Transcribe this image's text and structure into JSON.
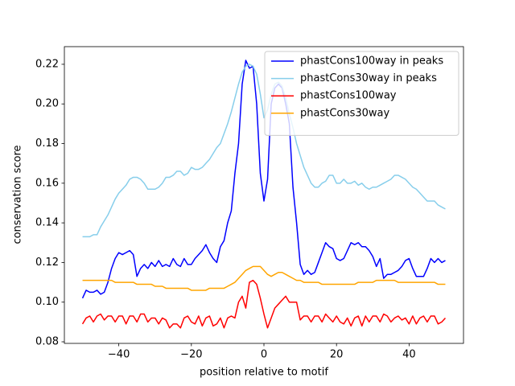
{
  "chart_data": {
    "type": "line",
    "xlabel": "position relative to motif",
    "ylabel": "conservation score",
    "x": [
      -50,
      -49,
      -48,
      -47,
      -46,
      -45,
      -44,
      -43,
      -42,
      -41,
      -40,
      -39,
      -38,
      -37,
      -36,
      -35,
      -34,
      -33,
      -32,
      -31,
      -30,
      -29,
      -28,
      -27,
      -26,
      -25,
      -24,
      -23,
      -22,
      -21,
      -20,
      -19,
      -18,
      -17,
      -16,
      -15,
      -14,
      -13,
      -12,
      -11,
      -10,
      -9,
      -8,
      -7,
      -6,
      -5,
      -4,
      -3,
      -2,
      -1,
      0,
      1,
      2,
      3,
      4,
      5,
      6,
      7,
      8,
      9,
      10,
      11,
      12,
      13,
      14,
      15,
      16,
      17,
      18,
      19,
      20,
      21,
      22,
      23,
      24,
      25,
      26,
      27,
      28,
      29,
      30,
      31,
      32,
      33,
      34,
      35,
      36,
      37,
      38,
      39,
      40,
      41,
      42,
      43,
      44,
      45,
      46,
      47,
      48,
      49,
      50
    ],
    "series": [
      {
        "name": "phastCons100way in peaks",
        "color": "#0000ff",
        "values": [
          0.102,
          0.106,
          0.105,
          0.105,
          0.106,
          0.104,
          0.105,
          0.11,
          0.117,
          0.122,
          0.125,
          0.124,
          0.125,
          0.126,
          0.124,
          0.113,
          0.117,
          0.119,
          0.117,
          0.12,
          0.118,
          0.121,
          0.118,
          0.119,
          0.118,
          0.122,
          0.119,
          0.118,
          0.122,
          0.119,
          0.119,
          0.122,
          0.124,
          0.126,
          0.129,
          0.125,
          0.122,
          0.12,
          0.128,
          0.131,
          0.14,
          0.146,
          0.165,
          0.18,
          0.21,
          0.222,
          0.218,
          0.219,
          0.2,
          0.165,
          0.151,
          0.162,
          0.2,
          0.208,
          0.21,
          0.208,
          0.2,
          0.19,
          0.158,
          0.14,
          0.119,
          0.114,
          0.116,
          0.114,
          0.115,
          0.12,
          0.125,
          0.13,
          0.128,
          0.127,
          0.122,
          0.121,
          0.122,
          0.126,
          0.13,
          0.129,
          0.13,
          0.128,
          0.128,
          0.126,
          0.123,
          0.118,
          0.122,
          0.112,
          0.114,
          0.114,
          0.115,
          0.116,
          0.118,
          0.121,
          0.122,
          0.117,
          0.113,
          0.113,
          0.113,
          0.117,
          0.122,
          0.12,
          0.122,
          0.12,
          0.121
        ]
      },
      {
        "name": "phastCons30way in peaks",
        "color": "#87ceeb",
        "values": [
          0.133,
          0.133,
          0.133,
          0.134,
          0.134,
          0.138,
          0.141,
          0.144,
          0.148,
          0.152,
          0.155,
          0.157,
          0.159,
          0.162,
          0.163,
          0.163,
          0.162,
          0.16,
          0.157,
          0.157,
          0.157,
          0.158,
          0.16,
          0.163,
          0.163,
          0.164,
          0.166,
          0.166,
          0.164,
          0.165,
          0.168,
          0.167,
          0.167,
          0.168,
          0.17,
          0.172,
          0.175,
          0.178,
          0.18,
          0.185,
          0.19,
          0.196,
          0.203,
          0.21,
          0.216,
          0.219,
          0.22,
          0.219,
          0.215,
          0.205,
          0.193,
          0.197,
          0.205,
          0.21,
          0.211,
          0.209,
          0.203,
          0.195,
          0.188,
          0.18,
          0.174,
          0.168,
          0.164,
          0.16,
          0.158,
          0.158,
          0.16,
          0.161,
          0.164,
          0.164,
          0.16,
          0.16,
          0.162,
          0.16,
          0.16,
          0.161,
          0.159,
          0.16,
          0.158,
          0.157,
          0.158,
          0.158,
          0.159,
          0.16,
          0.161,
          0.162,
          0.164,
          0.164,
          0.163,
          0.162,
          0.16,
          0.158,
          0.157,
          0.155,
          0.153,
          0.151,
          0.151,
          0.151,
          0.149,
          0.148,
          0.147
        ]
      },
      {
        "name": "phastCons100way",
        "color": "#ff0000",
        "values": [
          0.089,
          0.092,
          0.093,
          0.09,
          0.093,
          0.094,
          0.091,
          0.093,
          0.093,
          0.09,
          0.093,
          0.093,
          0.089,
          0.093,
          0.093,
          0.09,
          0.094,
          0.094,
          0.09,
          0.092,
          0.092,
          0.089,
          0.092,
          0.091,
          0.087,
          0.089,
          0.089,
          0.087,
          0.092,
          0.093,
          0.09,
          0.089,
          0.093,
          0.088,
          0.092,
          0.093,
          0.088,
          0.089,
          0.092,
          0.087,
          0.092,
          0.093,
          0.092,
          0.1,
          0.103,
          0.097,
          0.11,
          0.111,
          0.109,
          0.102,
          0.094,
          0.087,
          0.092,
          0.097,
          0.099,
          0.101,
          0.103,
          0.1,
          0.1,
          0.1,
          0.091,
          0.093,
          0.093,
          0.09,
          0.093,
          0.093,
          0.09,
          0.094,
          0.092,
          0.09,
          0.093,
          0.09,
          0.089,
          0.092,
          0.088,
          0.092,
          0.093,
          0.088,
          0.093,
          0.09,
          0.093,
          0.093,
          0.09,
          0.094,
          0.093,
          0.09,
          0.092,
          0.093,
          0.091,
          0.092,
          0.089,
          0.093,
          0.089,
          0.092,
          0.093,
          0.09,
          0.093,
          0.093,
          0.089,
          0.09,
          0.092
        ]
      },
      {
        "name": "phastCons30way",
        "color": "#ffa500",
        "values": [
          0.111,
          0.111,
          0.111,
          0.111,
          0.111,
          0.111,
          0.111,
          0.111,
          0.111,
          0.11,
          0.11,
          0.11,
          0.11,
          0.11,
          0.11,
          0.109,
          0.109,
          0.109,
          0.109,
          0.109,
          0.108,
          0.108,
          0.108,
          0.107,
          0.107,
          0.107,
          0.107,
          0.107,
          0.107,
          0.107,
          0.106,
          0.106,
          0.106,
          0.106,
          0.106,
          0.107,
          0.107,
          0.107,
          0.107,
          0.107,
          0.108,
          0.109,
          0.11,
          0.112,
          0.114,
          0.116,
          0.117,
          0.118,
          0.118,
          0.118,
          0.116,
          0.114,
          0.113,
          0.114,
          0.115,
          0.115,
          0.114,
          0.113,
          0.112,
          0.111,
          0.111,
          0.11,
          0.11,
          0.11,
          0.11,
          0.11,
          0.109,
          0.109,
          0.109,
          0.109,
          0.109,
          0.109,
          0.109,
          0.109,
          0.109,
          0.109,
          0.11,
          0.11,
          0.11,
          0.11,
          0.11,
          0.111,
          0.111,
          0.111,
          0.111,
          0.111,
          0.111,
          0.11,
          0.11,
          0.11,
          0.11,
          0.11,
          0.11,
          0.11,
          0.11,
          0.11,
          0.11,
          0.11,
          0.109,
          0.109,
          0.109
        ]
      }
    ],
    "xlim": [
      -55,
      55
    ],
    "ylim": [
      0.0792,
      0.2289
    ],
    "xticks": [
      {
        "value": -40,
        "label": "−40"
      },
      {
        "value": -20,
        "label": "−20"
      },
      0,
      20,
      40
    ],
    "yticks": [
      0.08,
      {
        "value": 0.1,
        "label": "0.10"
      },
      0.12,
      0.14,
      0.16,
      0.18,
      {
        "value": 0.2,
        "label": "0.20"
      },
      0.22
    ],
    "legend": "upper right"
  }
}
